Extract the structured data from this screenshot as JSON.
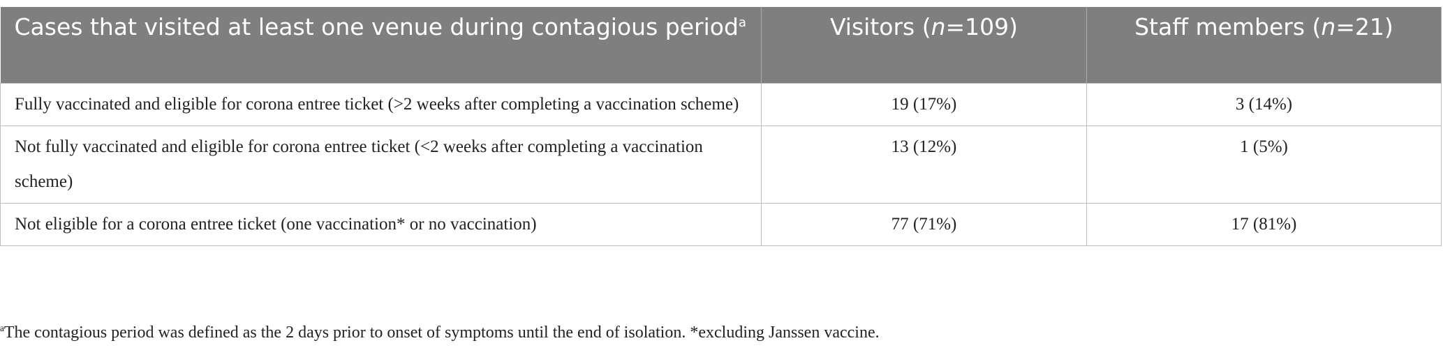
{
  "table": {
    "header": [
      {
        "text": "Cases that visited at least one venue during contagious period",
        "sup": "a"
      },
      {
        "before": "Visitors (",
        "italic": "n",
        "after": "=109)"
      },
      {
        "before": "Staff members (",
        "italic": "n",
        "after": "=21)"
      }
    ],
    "rows": [
      [
        "Fully vaccinated and eligible for corona entree ticket (>2 weeks after completing a vaccination scheme)",
        "19 (17%)",
        "3 (14%)"
      ],
      [
        "Not fully vaccinated and eligible for corona entree ticket (<2 weeks after completing a vaccination scheme)",
        "13 (12%)",
        "1 (5%)"
      ],
      [
        "Not eligible for a corona entree ticket (one vaccination* or no vaccination)",
        "77 (71%)",
        "17 (81%)"
      ]
    ]
  },
  "footnote": {
    "sup": "a",
    "text": "The contagious period was defined as the 2 days prior to onset of symptoms until the end of isolation. *excluding Janssen vaccine."
  }
}
